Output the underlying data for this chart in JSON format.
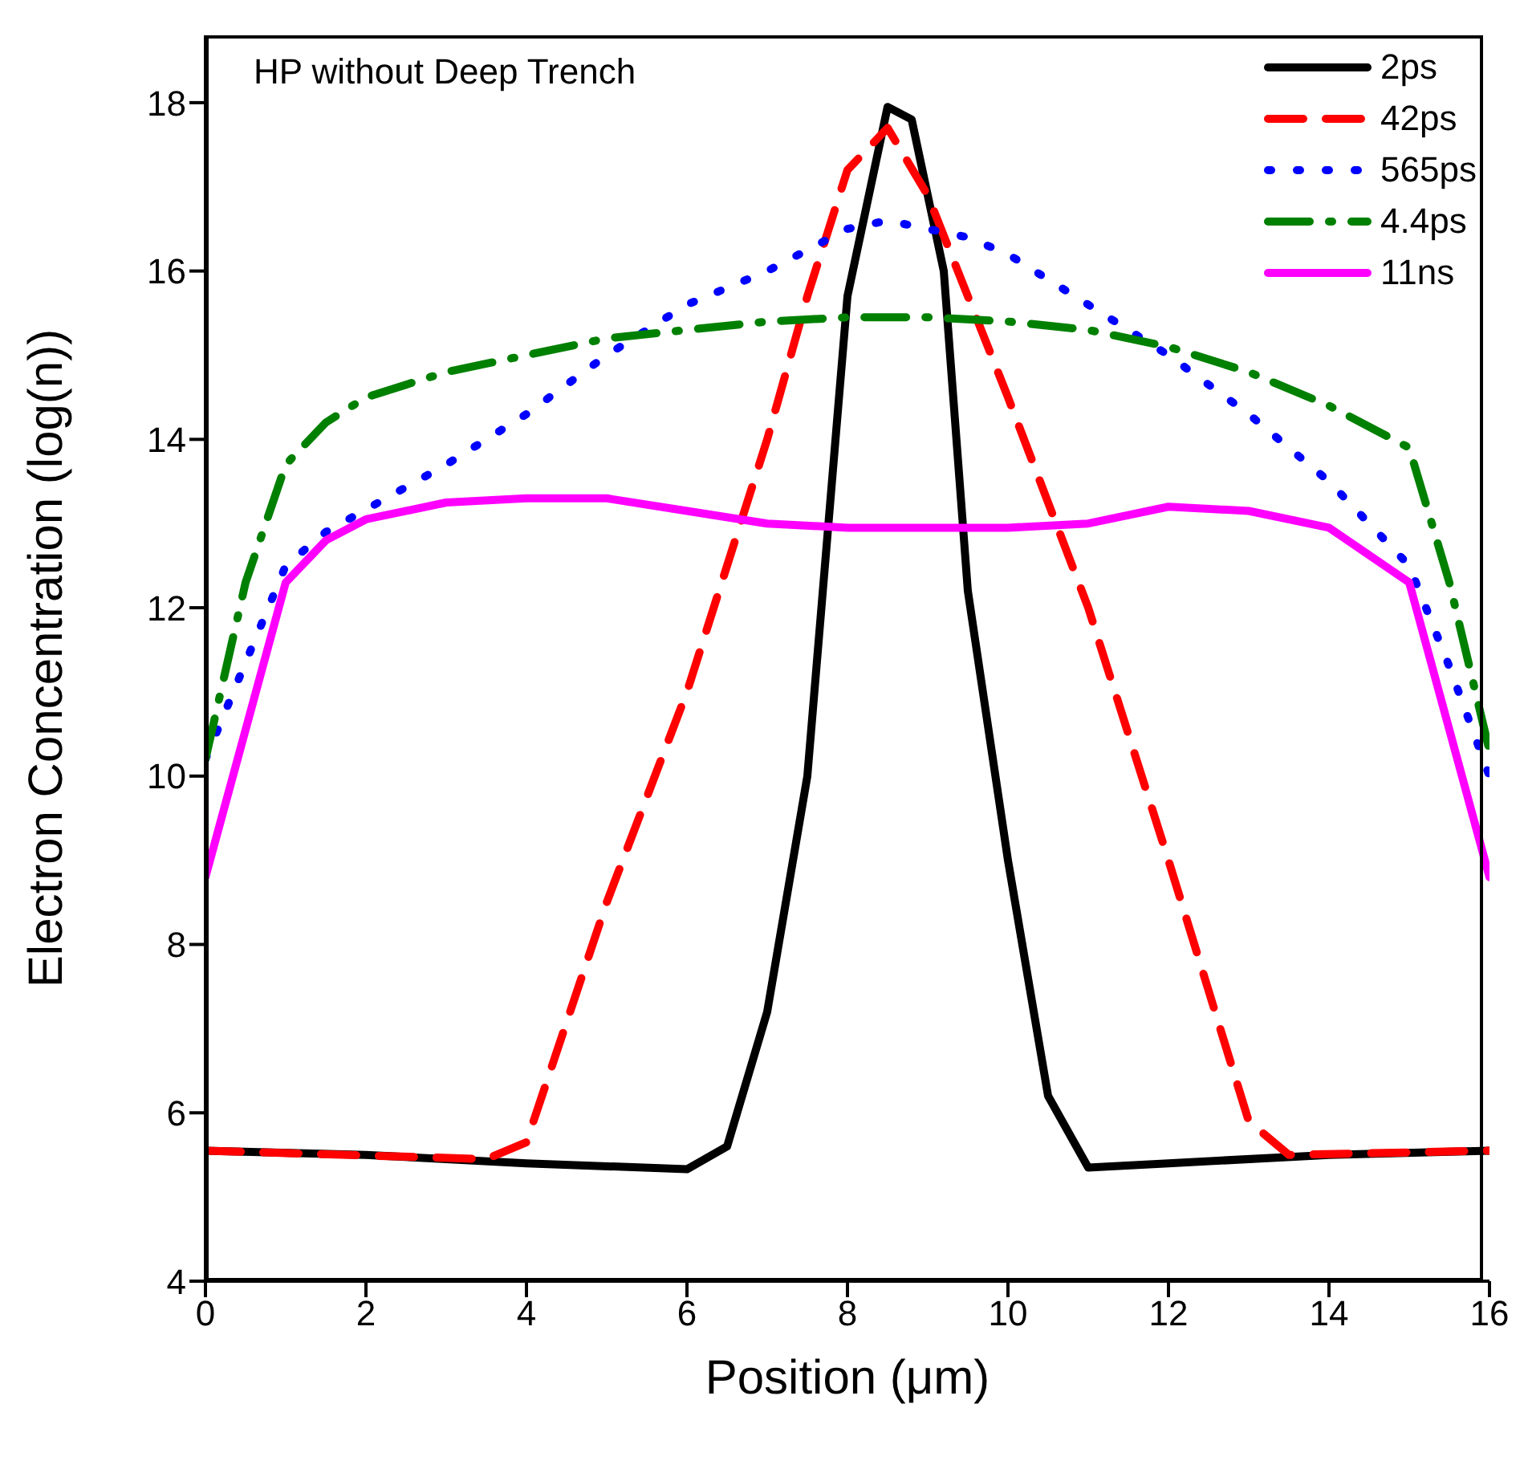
{
  "chart_data": {
    "type": "line",
    "title": "HP without Deep Trench",
    "xlabel": "Position (μm)",
    "ylabel": "Electron Concentration (log(n))",
    "xlim": [
      0,
      16
    ],
    "xticks": [
      0,
      2,
      4,
      6,
      8,
      10,
      12,
      14,
      16
    ],
    "ylim": [
      4,
      18.8
    ],
    "yticks": [
      4,
      6,
      8,
      10,
      12,
      14,
      16,
      18
    ],
    "grid": false,
    "legend": "top right",
    "marker": "none",
    "series": [
      {
        "name": "2ps",
        "color": "#000000",
        "line_style": "solid",
        "x": [
          0,
          2,
          4,
          6,
          6.5,
          7,
          7.5,
          8,
          8.5,
          8.8,
          9.2,
          9.5,
          10,
          10.5,
          11,
          12,
          14,
          16
        ],
        "values": [
          5.55,
          5.5,
          5.4,
          5.33,
          5.6,
          7.2,
          10,
          15.7,
          17.95,
          17.8,
          16,
          12.2,
          9,
          6.2,
          5.35,
          5.4,
          5.5,
          5.55
        ]
      },
      {
        "name": "42ps",
        "color": "#ff0000",
        "line_style": "dashed",
        "x": [
          0,
          3.5,
          4,
          5,
          6,
          7,
          7.5,
          8,
          8.5,
          9,
          10,
          11,
          12,
          13,
          13.5,
          16
        ],
        "values": [
          5.55,
          5.45,
          5.65,
          8.5,
          11,
          14,
          15.7,
          17.2,
          17.7,
          16.9,
          14.5,
          12,
          9,
          5.9,
          5.5,
          5.55
        ]
      },
      {
        "name": "565ps",
        "color": "#0000ff",
        "line_style": "dotted",
        "x": [
          0,
          1,
          1.5,
          3,
          4,
          5,
          6,
          7,
          8,
          8.5,
          9,
          9.5,
          10,
          11,
          12,
          13,
          14,
          15,
          15.5,
          16
        ],
        "values": [
          10.2,
          12.5,
          12.9,
          13.7,
          14.3,
          15,
          15.6,
          16,
          16.5,
          16.6,
          16.5,
          16.4,
          16.2,
          15.6,
          15,
          14.3,
          13.5,
          12.5,
          11.3,
          10
        ]
      },
      {
        "name": "4.4ps",
        "color": "#008000",
        "line_style": "dashdot",
        "x": [
          0,
          0.5,
          1,
          1.5,
          2,
          3,
          4,
          5,
          6,
          7,
          8,
          9,
          10,
          11,
          12,
          13,
          14,
          15,
          15.5,
          16
        ],
        "values": [
          10.2,
          12.3,
          13.7,
          14.2,
          14.5,
          14.8,
          15,
          15.2,
          15.3,
          15.4,
          15.45,
          15.45,
          15.4,
          15.3,
          15.1,
          14.8,
          14.4,
          13.9,
          12.3,
          10.3
        ]
      },
      {
        "name": "11ns",
        "color": "#ff00ff",
        "line_style": "solid",
        "x": [
          0,
          1,
          1.5,
          2,
          3,
          4,
          5,
          6,
          7,
          8,
          9,
          10,
          11,
          12,
          13,
          14,
          15,
          16
        ],
        "values": [
          8.8,
          12.3,
          12.8,
          13.05,
          13.25,
          13.3,
          13.3,
          13.15,
          13,
          12.95,
          12.95,
          12.95,
          13,
          13.2,
          13.15,
          12.95,
          12.3,
          8.8
        ]
      }
    ]
  }
}
